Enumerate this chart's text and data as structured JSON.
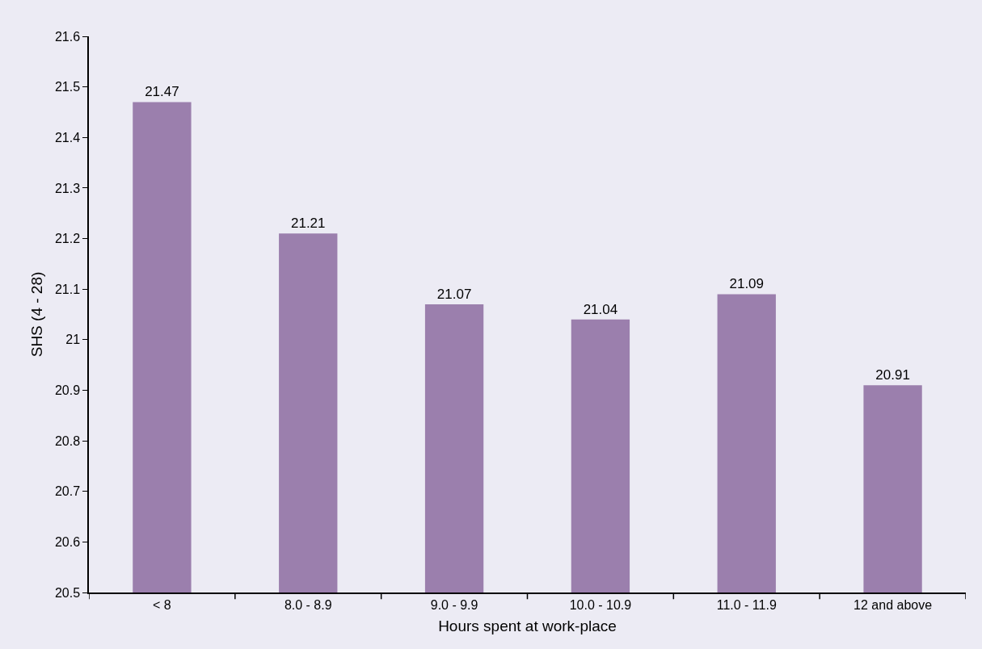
{
  "chart_data": {
    "type": "bar",
    "xlabel": "Hours spent at work-place",
    "ylabel": "SHS (4 - 28)",
    "categories": [
      "< 8",
      "8.0 - 8.9",
      "9.0 - 9.9",
      "10.0 - 10.9",
      "11.0 - 11.9",
      "12 and above"
    ],
    "values": [
      21.47,
      21.21,
      21.07,
      21.04,
      21.09,
      20.91
    ],
    "color": "#9b7fad",
    "ylim": [
      20.5,
      21.6
    ],
    "yticks": [
      20.5,
      20.6,
      20.7,
      20.8,
      20.9,
      21,
      21.1,
      21.2,
      21.3,
      21.4,
      21.5,
      21.6
    ],
    "data_labels": true,
    "grid": false,
    "legend": false
  }
}
